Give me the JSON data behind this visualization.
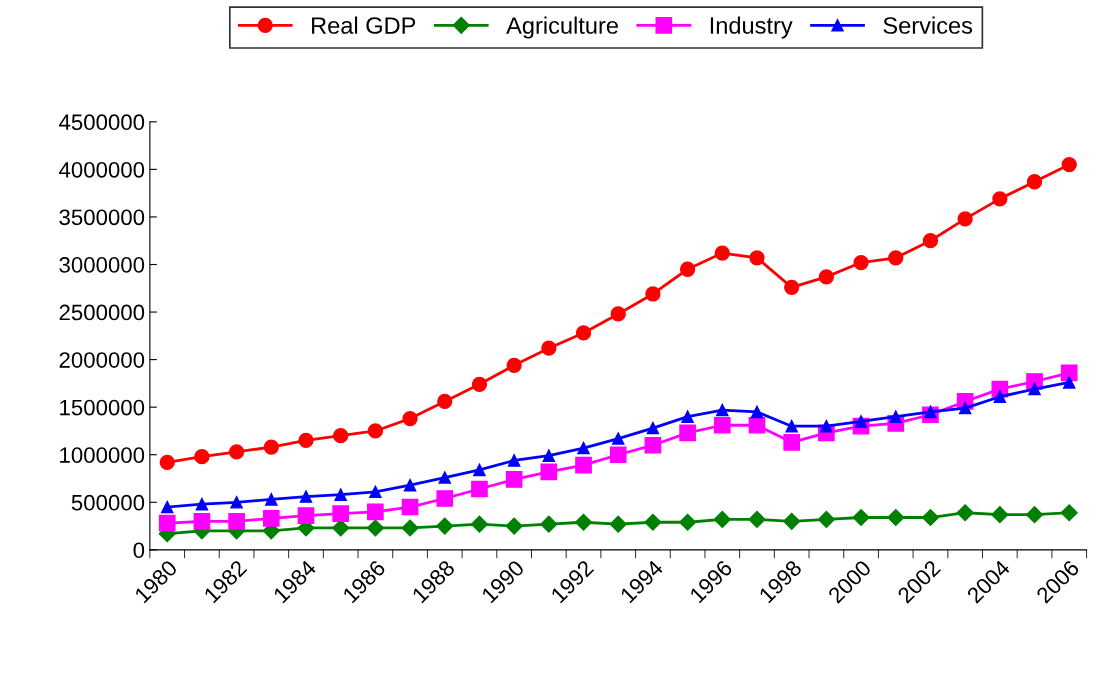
{
  "chart_data": {
    "type": "line",
    "categories": [
      "1980",
      null,
      "1982",
      null,
      "1984",
      null,
      "1986",
      null,
      "1988",
      null,
      "1990",
      null,
      "1992",
      null,
      "1994",
      null,
      "1996",
      null,
      "1998",
      null,
      "2000",
      null,
      "2002",
      null,
      "2004",
      null,
      "2006"
    ],
    "series": [
      {
        "name": "Real GDP",
        "color": "#ff0000",
        "marker": "circle",
        "values": [
          920000,
          980000,
          1030000,
          1080000,
          1150000,
          1200000,
          1250000,
          1380000,
          1560000,
          1740000,
          1940000,
          2120000,
          2280000,
          2480000,
          2690000,
          2950000,
          3120000,
          3070000,
          2760000,
          2870000,
          3020000,
          3070000,
          3250000,
          3480000,
          3690000,
          3870000,
          4050000
        ]
      },
      {
        "name": "Agriculture",
        "color": "#008000",
        "marker": "diamond",
        "values": [
          170000,
          200000,
          200000,
          200000,
          230000,
          230000,
          230000,
          230000,
          250000,
          270000,
          250000,
          270000,
          290000,
          270000,
          290000,
          290000,
          320000,
          320000,
          300000,
          320000,
          340000,
          340000,
          340000,
          390000,
          370000,
          370000,
          390000
        ]
      },
      {
        "name": "Industry",
        "color": "#ff00ff",
        "marker": "square",
        "values": [
          280000,
          300000,
          300000,
          330000,
          360000,
          380000,
          400000,
          450000,
          540000,
          640000,
          740000,
          820000,
          890000,
          1000000,
          1100000,
          1230000,
          1310000,
          1310000,
          1130000,
          1230000,
          1300000,
          1330000,
          1420000,
          1560000,
          1690000,
          1770000,
          1860000
        ]
      },
      {
        "name": "Services",
        "color": "#0000ff",
        "marker": "triangle",
        "values": [
          450000,
          480000,
          500000,
          530000,
          560000,
          580000,
          610000,
          680000,
          760000,
          840000,
          940000,
          990000,
          1070000,
          1170000,
          1280000,
          1400000,
          1470000,
          1450000,
          1300000,
          1300000,
          1350000,
          1400000,
          1450000,
          1490000,
          1610000,
          1690000,
          1760000
        ]
      }
    ],
    "ylim": [
      0,
      4500000
    ],
    "yticks": [
      0,
      500000,
      1000000,
      1500000,
      2000000,
      2500000,
      3000000,
      3500000,
      4000000,
      4500000
    ],
    "grid": false,
    "legend": "top",
    "line_style": "solid"
  }
}
